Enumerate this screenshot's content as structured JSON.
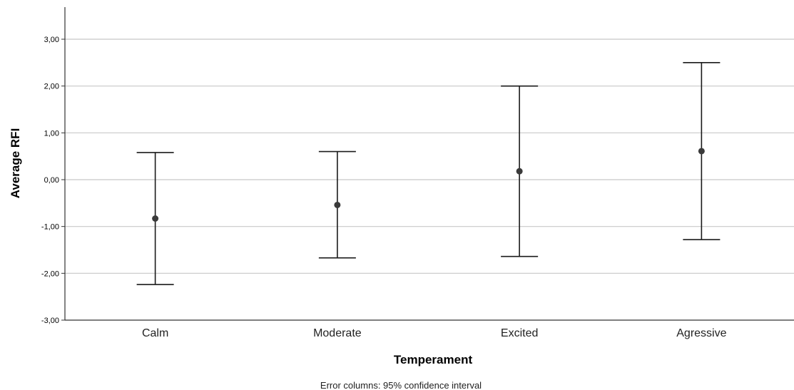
{
  "chart_data": {
    "type": "errorbar",
    "categories": [
      "Calm",
      "Moderate",
      "Excited",
      "Agressive"
    ],
    "series": [
      {
        "mean": [
          -0.83,
          -0.54,
          0.18,
          0.61
        ],
        "lower": [
          -2.24,
          -1.67,
          -1.64,
          -1.28
        ],
        "upper": [
          0.58,
          0.6,
          2.0,
          2.5
        ]
      }
    ],
    "xlabel": "Temperament",
    "ylabel": "Average RFI",
    "ylim": [
      -3,
      3.5
    ],
    "yticks": [
      -3,
      -2,
      -1,
      0,
      1,
      2,
      3
    ],
    "ytick_labels": [
      "-3,00",
      "-2,00",
      "-1,00",
      "0,00",
      "1,00",
      "2,00",
      "3,00"
    ],
    "grid": true,
    "footnote": "Error columns: 95% confidence interval",
    "colors": {
      "grid": "#c8c8c8",
      "axis": "#333333",
      "errorbar": "#1a1a1a",
      "marker": "#3a3a3a"
    }
  }
}
